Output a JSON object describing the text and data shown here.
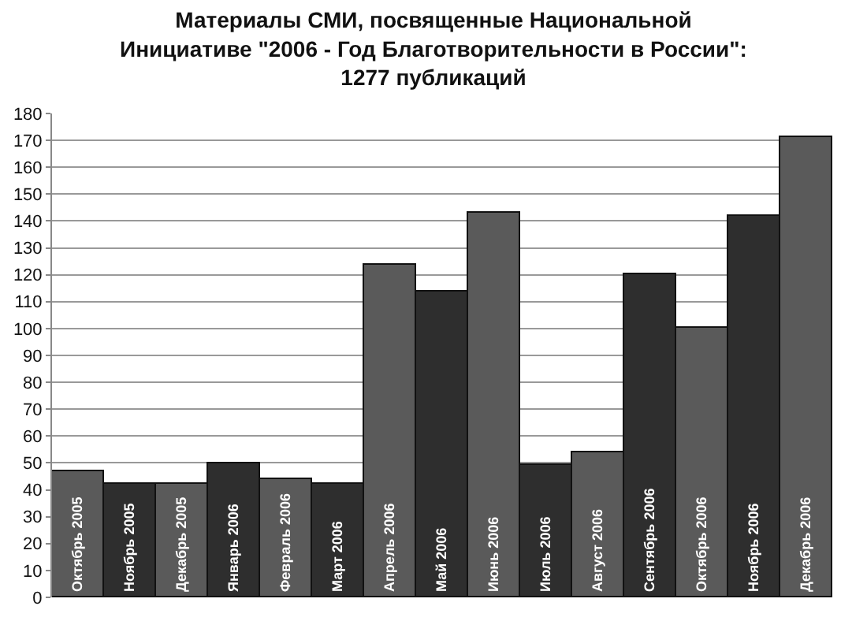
{
  "chart_data": {
    "type": "bar",
    "title": "Материалы СМИ, посвященные Национальной\nИнициативе \"2006 - Год Благотворительности в России\":\n1277 публикаций",
    "categories": [
      "Октябрь 2005",
      "Ноябрь 2005",
      "Декабрь 2005",
      "Январь 2006",
      "Февраль 2006",
      "Март 2006",
      "Апрель 2006",
      "Май 2006",
      "Июнь 2006",
      "Июль 2006",
      "Август 2006",
      "Сентябрь 2006",
      "Октябрь 2006",
      "Ноябрь 2006",
      "Декабрь 2006"
    ],
    "values": [
      47,
      42,
      42,
      50,
      44,
      42,
      124,
      114,
      143,
      49,
      54,
      120,
      100,
      142,
      171
    ],
    "colors": [
      "#5a5a5a",
      "#2e2e2e",
      "#5a5a5a",
      "#2e2e2e",
      "#5a5a5a",
      "#2e2e2e",
      "#5a5a5a",
      "#2e2e2e",
      "#5a5a5a",
      "#2e2e2e",
      "#5a5a5a",
      "#2e2e2e",
      "#5a5a5a",
      "#2e2e2e",
      "#5a5a5a"
    ],
    "ylim": [
      0,
      180
    ],
    "yticks": [
      0,
      10,
      20,
      30,
      40,
      50,
      60,
      70,
      80,
      90,
      100,
      110,
      120,
      130,
      140,
      150,
      160,
      170,
      180
    ],
    "grid": "y"
  }
}
